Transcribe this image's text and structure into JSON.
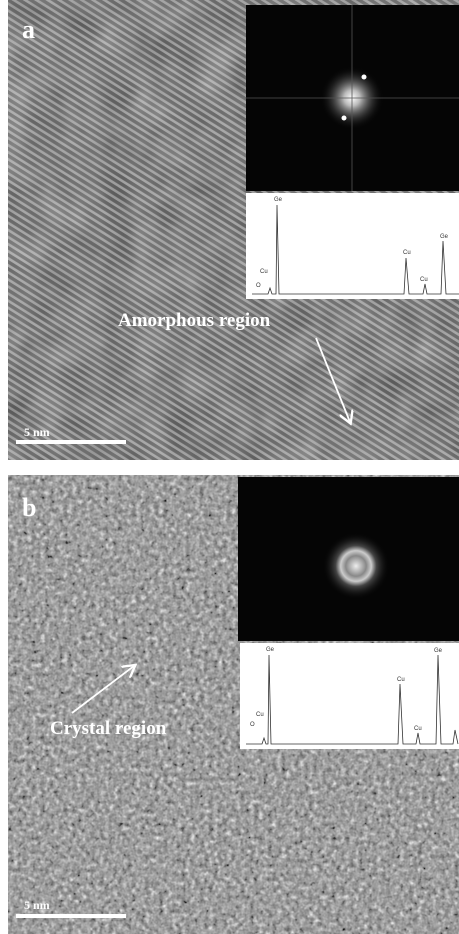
{
  "panels": [
    {
      "label": "a",
      "annotation": "Amorphous region",
      "scale_bar": "5 nm",
      "spectrum_labels": [
        "Cu",
        "O",
        "Ge",
        "Cu",
        "Cu",
        "Ge"
      ]
    },
    {
      "label": "b",
      "annotation": "Crystal region",
      "scale_bar": "5 nm",
      "spectrum_labels": [
        "O",
        "Cu",
        "Ge",
        "Cu",
        "Cu",
        "Ge"
      ]
    }
  ]
}
